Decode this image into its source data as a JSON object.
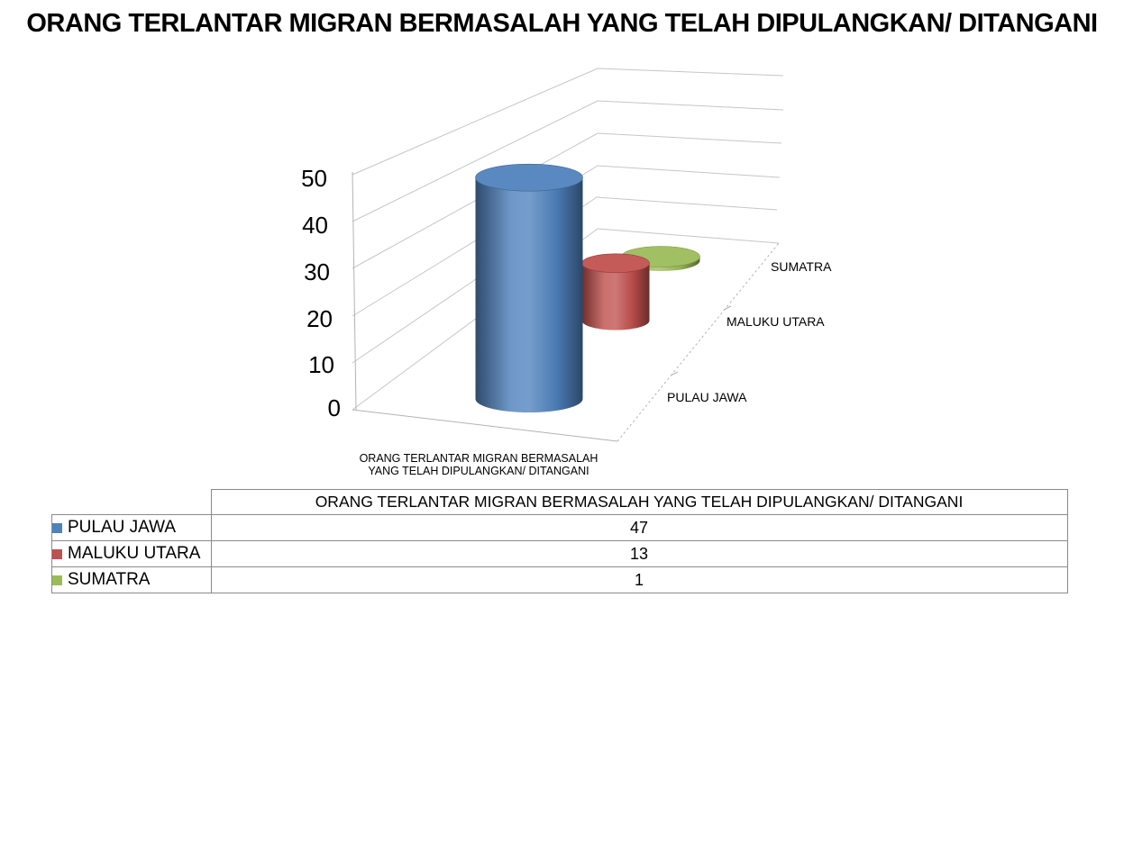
{
  "title": "ORANG TERLANTAR MIGRAN BERMASALAH YANG TELAH DIPULANGKAN/ DITANGANI",
  "chart_data": {
    "type": "bar",
    "subtype": "cylinder-3d",
    "title": "ORANG TERLANTAR MIGRAN BERMASALAH YANG TELAH DIPULANGKAN/ DITANGANI",
    "categories": [
      "ORANG TERLANTAR MIGRAN BERMASALAH YANG TELAH DIPULANGKAN/ DITANGANI"
    ],
    "series": [
      {
        "name": "PULAU JAWA",
        "values": [
          47
        ],
        "color": "#4F81BD"
      },
      {
        "name": "MALUKU UTARA",
        "values": [
          13
        ],
        "color": "#C0504D"
      },
      {
        "name": "SUMATRA",
        "values": [
          1
        ],
        "color": "#9BBB59"
      }
    ],
    "value_axis": {
      "min": 0,
      "max": 50,
      "major_unit": 10,
      "ticks": [
        "0",
        "10",
        "20",
        "30",
        "40",
        "50"
      ]
    },
    "category_axis_label_lines": [
      "ORANG TERLANTAR MIGRAN BERMASALAH",
      "YANG TELAH DIPULANGKAN/ DITANGANI"
    ],
    "gridlines": true,
    "legend": "data-table-left"
  },
  "table": {
    "header": "ORANG TERLANTAR MIGRAN BERMASALAH YANG TELAH DIPULANGKAN/ DITANGANI",
    "rows": [
      {
        "label": "PULAU JAWA",
        "value": "47",
        "swatch": "#4F81BD"
      },
      {
        "label": "MALUKU UTARA",
        "value": "13",
        "swatch": "#C0504D"
      },
      {
        "label": "SUMATRA",
        "value": "1",
        "swatch": "#9BBB59"
      }
    ]
  },
  "colors": {
    "background": "#ffffff",
    "gridline": "#c6c6c6",
    "axis_line": "#b3b3b3",
    "table_border": "#8a8a8a",
    "text": "#000000"
  }
}
